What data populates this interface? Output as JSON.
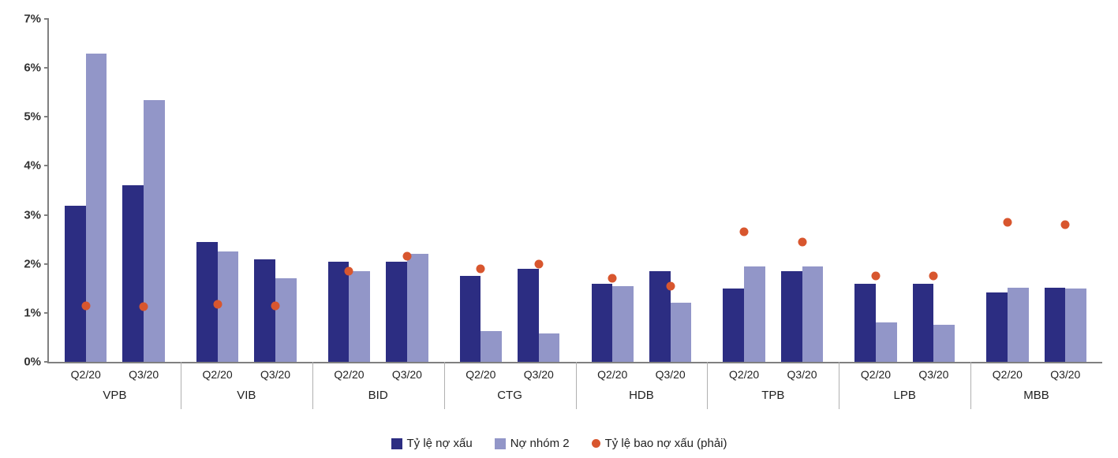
{
  "chart": {
    "type": "bar+scatter",
    "background_color": "#ffffff",
    "axis_color": "#808080",
    "y": {
      "min": 0,
      "max": 7,
      "tick_step": 1,
      "tick_format_suffix": "%",
      "label_fontsize": 15,
      "label_fontweight": "bold",
      "label_color": "#333333"
    },
    "x": {
      "quarter_label_fontsize": 14,
      "group_label_fontsize": 15,
      "label_color": "#222222"
    },
    "groups": [
      "VPB",
      "VIB",
      "BID",
      "CTG",
      "HDB",
      "TPB",
      "LPB",
      "MBB"
    ],
    "quarters": [
      "Q2/20",
      "Q3/20"
    ],
    "series": {
      "npl": {
        "label": "Tỷ lệ nợ xấu",
        "type": "bar",
        "color": "#2c2d82",
        "bar_width_frac": 0.32
      },
      "group2": {
        "label": "Nợ nhóm 2",
        "type": "bar",
        "color": "#9296c8",
        "bar_width_frac": 0.32
      },
      "coverage": {
        "label": "Tỷ lệ bao nợ xấu (phải)",
        "type": "scatter",
        "color": "#d8562e",
        "marker_size_px": 11
      }
    },
    "legend": {
      "fontsize": 15,
      "position": "bottom-center"
    },
    "data": [
      {
        "group": "VPB",
        "quarter": "Q2/20",
        "npl": 3.18,
        "group2": 6.3,
        "coverage": 1.15
      },
      {
        "group": "VPB",
        "quarter": "Q3/20",
        "npl": 3.6,
        "group2": 5.35,
        "coverage": 1.12
      },
      {
        "group": "VIB",
        "quarter": "Q2/20",
        "npl": 2.45,
        "group2": 2.25,
        "coverage": 1.18
      },
      {
        "group": "VIB",
        "quarter": "Q3/20",
        "npl": 2.1,
        "group2": 1.7,
        "coverage": 1.15
      },
      {
        "group": "BID",
        "quarter": "Q2/20",
        "npl": 2.05,
        "group2": 1.85,
        "coverage": 1.85
      },
      {
        "group": "BID",
        "quarter": "Q3/20",
        "npl": 2.05,
        "group2": 2.2,
        "coverage": 2.15
      },
      {
        "group": "CTG",
        "quarter": "Q2/20",
        "npl": 1.75,
        "group2": 0.62,
        "coverage": 1.9
      },
      {
        "group": "CTG",
        "quarter": "Q3/20",
        "npl": 1.9,
        "group2": 0.58,
        "coverage": 2.0
      },
      {
        "group": "HDB",
        "quarter": "Q2/20",
        "npl": 1.6,
        "group2": 1.55,
        "coverage": 1.7
      },
      {
        "group": "HDB",
        "quarter": "Q3/20",
        "npl": 1.85,
        "group2": 1.2,
        "coverage": 1.55
      },
      {
        "group": "TPB",
        "quarter": "Q2/20",
        "npl": 1.5,
        "group2": 1.95,
        "coverage": 2.65
      },
      {
        "group": "TPB",
        "quarter": "Q3/20",
        "npl": 1.85,
        "group2": 1.95,
        "coverage": 2.45
      },
      {
        "group": "LPB",
        "quarter": "Q2/20",
        "npl": 1.6,
        "group2": 0.8,
        "coverage": 1.75
      },
      {
        "group": "LPB",
        "quarter": "Q3/20",
        "npl": 1.6,
        "group2": 0.75,
        "coverage": 1.75
      },
      {
        "group": "MBB",
        "quarter": "Q2/20",
        "npl": 1.42,
        "group2": 1.52,
        "coverage": 2.85
      },
      {
        "group": "MBB",
        "quarter": "Q3/20",
        "npl": 1.52,
        "group2": 1.5,
        "coverage": 2.8
      }
    ]
  }
}
